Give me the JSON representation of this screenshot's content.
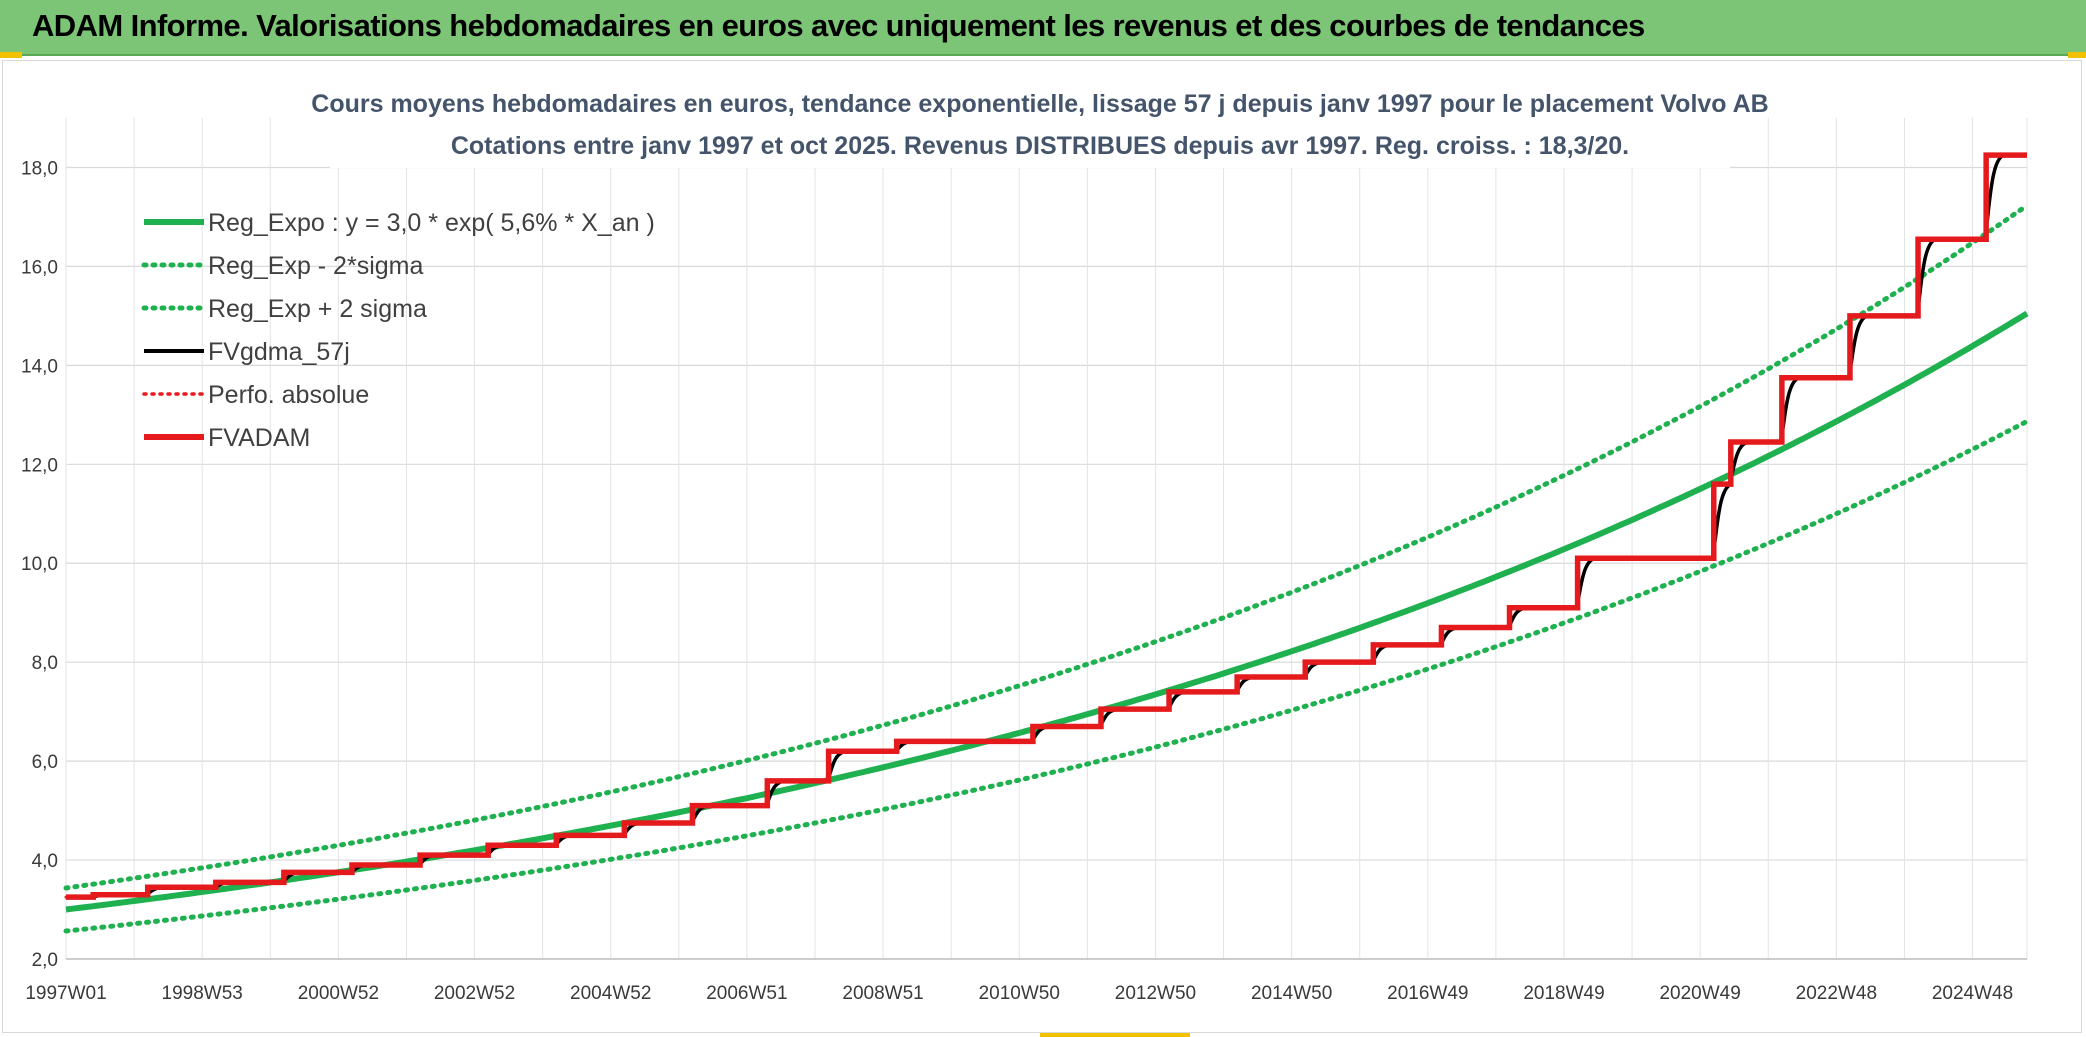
{
  "header": {
    "title": "ADAM Informe. Valorisations hebdomadaires en euros avec uniquement les revenus et des courbes de tendances"
  },
  "chart_data": {
    "type": "line",
    "subtitle_lines": [
      "Cours moyens hebdomadaires en euros, tendance exponentielle, lissage 57 j depuis janv 1997 pour le placement Volvo AB",
      "Cotations entre janv 1997 et oct 2025. Revenus DISTRIBUES depuis avr 1997. Reg. croiss. : 18,3/20."
    ],
    "x_ticks": [
      "1997W01",
      "1998W53",
      "2000W52",
      "2002W52",
      "2004W52",
      "2006W51",
      "2008W51",
      "2010W50",
      "2012W50",
      "2014W50",
      "2016W49",
      "2018W49",
      "2020W49",
      "2022W48",
      "2024W48"
    ],
    "x_range_years": [
      1997.0,
      2025.8
    ],
    "ylim": [
      2.0,
      19.0
    ],
    "y_ticks": [
      "2,0",
      "4,0",
      "6,0",
      "8,0",
      "10,0",
      "12,0",
      "14,0",
      "16,0",
      "18,0"
    ],
    "grid": true,
    "legend_position": "top-left",
    "regression": {
      "a": 3.0,
      "rate": 0.056,
      "sigma_factor": 0.145
    },
    "series": [
      {
        "name": "Reg_Expo : y = 3,0 * exp( 5,6% *  X_an )",
        "color": "#1fb050",
        "style": "solid-thick"
      },
      {
        "name": "Reg_Exp - 2*sigma",
        "color": "#1fb050",
        "style": "dotted"
      },
      {
        "name": "Reg_Exp + 2 sigma",
        "color": "#1fb050",
        "style": "dotted"
      },
      {
        "name": "FVgdma_57j",
        "color": "#000000",
        "style": "solid"
      },
      {
        "name": "Perfo. absolue",
        "color": "#e41a1c",
        "style": "dotted"
      },
      {
        "name": "FVADAM",
        "color": "#e41a1c",
        "style": "solid-thick"
      }
    ],
    "fvadam_steps": [
      {
        "x": 1997.0,
        "y": 3.25
      },
      {
        "x": 1997.4,
        "y": 3.3
      },
      {
        "x": 1998.2,
        "y": 3.45
      },
      {
        "x": 1999.2,
        "y": 3.55
      },
      {
        "x": 2000.2,
        "y": 3.75
      },
      {
        "x": 2001.2,
        "y": 3.9
      },
      {
        "x": 2002.2,
        "y": 4.1
      },
      {
        "x": 2003.2,
        "y": 4.3
      },
      {
        "x": 2004.2,
        "y": 4.5
      },
      {
        "x": 2005.2,
        "y": 4.75
      },
      {
        "x": 2006.2,
        "y": 5.1
      },
      {
        "x": 2007.3,
        "y": 5.6
      },
      {
        "x": 2008.2,
        "y": 6.2
      },
      {
        "x": 2009.2,
        "y": 6.4
      },
      {
        "x": 2011.2,
        "y": 6.7
      },
      {
        "x": 2012.2,
        "y": 7.05
      },
      {
        "x": 2013.2,
        "y": 7.4
      },
      {
        "x": 2014.2,
        "y": 7.7
      },
      {
        "x": 2015.2,
        "y": 8.0
      },
      {
        "x": 2016.2,
        "y": 8.35
      },
      {
        "x": 2017.2,
        "y": 8.7
      },
      {
        "x": 2018.2,
        "y": 9.1
      },
      {
        "x": 2019.2,
        "y": 10.1
      },
      {
        "x": 2021.2,
        "y": 11.6
      },
      {
        "x": 2021.45,
        "y": 12.45
      },
      {
        "x": 2022.2,
        "y": 13.75
      },
      {
        "x": 2023.2,
        "y": 15.0
      },
      {
        "x": 2024.2,
        "y": 16.55
      },
      {
        "x": 2025.2,
        "y": 18.25
      }
    ]
  }
}
